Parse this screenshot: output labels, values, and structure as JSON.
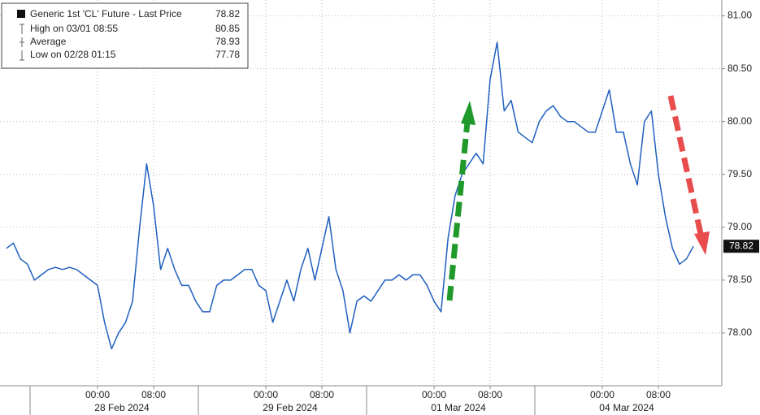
{
  "chart_data": {
    "type": "line",
    "x": [
      "2024-02-27 11:00",
      "2024-02-27 12:00",
      "2024-02-27 13:00",
      "2024-02-27 14:00",
      "2024-02-27 15:00",
      "2024-02-27 16:00",
      "2024-02-27 17:00",
      "2024-02-27 18:00",
      "2024-02-27 19:00",
      "2024-02-27 20:00",
      "2024-02-27 21:00",
      "2024-02-27 22:00",
      "2024-02-27 23:00",
      "2024-02-28 00:00",
      "2024-02-28 01:00",
      "2024-02-28 02:00",
      "2024-02-28 03:00",
      "2024-02-28 04:00",
      "2024-02-28 05:00",
      "2024-02-28 06:00",
      "2024-02-28 07:00",
      "2024-02-28 08:00",
      "2024-02-28 09:00",
      "2024-02-28 10:00",
      "2024-02-28 11:00",
      "2024-02-28 12:00",
      "2024-02-28 13:00",
      "2024-02-28 14:00",
      "2024-02-28 15:00",
      "2024-02-28 16:00",
      "2024-02-28 17:00",
      "2024-02-28 18:00",
      "2024-02-28 19:00",
      "2024-02-28 20:00",
      "2024-02-28 21:00",
      "2024-02-28 22:00",
      "2024-02-28 23:00",
      "2024-02-29 00:00",
      "2024-02-29 01:00",
      "2024-02-29 02:00",
      "2024-02-29 03:00",
      "2024-02-29 04:00",
      "2024-02-29 05:00",
      "2024-02-29 06:00",
      "2024-02-29 07:00",
      "2024-02-29 08:00",
      "2024-02-29 09:00",
      "2024-02-29 10:00",
      "2024-02-29 11:00",
      "2024-02-29 12:00",
      "2024-02-29 13:00",
      "2024-02-29 14:00",
      "2024-02-29 15:00",
      "2024-02-29 16:00",
      "2024-02-29 17:00",
      "2024-02-29 18:00",
      "2024-02-29 19:00",
      "2024-02-29 20:00",
      "2024-02-29 21:00",
      "2024-02-29 22:00",
      "2024-02-29 23:00",
      "2024-03-01 00:00",
      "2024-03-01 01:00",
      "2024-03-01 02:00",
      "2024-03-01 03:00",
      "2024-03-01 04:00",
      "2024-03-01 05:00",
      "2024-03-01 06:00",
      "2024-03-01 07:00",
      "2024-03-01 08:00",
      "2024-03-01 09:00",
      "2024-03-01 10:00",
      "2024-03-01 11:00",
      "2024-03-01 12:00",
      "2024-03-01 13:00",
      "2024-03-01 14:00",
      "2024-03-01 15:00",
      "2024-03-01 16:00",
      "2024-03-01 17:00",
      "2024-03-01 18:00",
      "2024-03-01 19:00",
      "2024-03-01 20:00",
      "2024-03-01 21:00",
      "2024-03-01 22:00",
      "2024-03-01 23:00",
      "2024-03-04 00:00",
      "2024-03-04 01:00",
      "2024-03-04 02:00",
      "2024-03-04 03:00",
      "2024-03-04 04:00",
      "2024-03-04 05:00",
      "2024-03-04 06:00",
      "2024-03-04 07:00",
      "2024-03-04 08:00",
      "2024-03-04 09:00",
      "2024-03-04 10:00",
      "2024-03-04 11:00",
      "2024-03-04 12:00",
      "2024-03-04 13:00"
    ],
    "series": [
      {
        "name": "Generic 1st 'CL' Future - Last Price",
        "color": "#1f5fbf",
        "values": [
          78.8,
          78.85,
          78.7,
          78.65,
          78.5,
          78.55,
          78.6,
          78.62,
          78.6,
          78.62,
          78.6,
          78.55,
          78.5,
          78.45,
          78.1,
          77.85,
          78.0,
          78.1,
          78.3,
          79.0,
          79.6,
          79.2,
          78.6,
          78.8,
          78.6,
          78.45,
          78.45,
          78.3,
          78.2,
          78.2,
          78.45,
          78.5,
          78.5,
          78.55,
          78.6,
          78.6,
          78.45,
          78.4,
          78.1,
          78.3,
          78.5,
          78.3,
          78.6,
          78.8,
          78.5,
          78.8,
          79.1,
          78.6,
          78.4,
          78.0,
          78.3,
          78.35,
          78.3,
          78.4,
          78.5,
          78.5,
          78.55,
          78.5,
          78.55,
          78.55,
          78.45,
          78.3,
          78.2,
          78.9,
          79.3,
          79.5,
          79.6,
          79.7,
          79.6,
          80.4,
          80.75,
          80.1,
          80.2,
          79.9,
          79.85,
          79.8,
          80.0,
          80.1,
          80.15,
          80.05,
          80.0,
          80.0,
          79.95,
          79.9,
          79.9,
          80.1,
          80.3,
          79.9,
          79.9,
          79.6,
          79.4,
          80.0,
          80.1,
          79.5,
          79.1,
          78.8,
          78.65,
          78.7,
          78.82
        ]
      }
    ],
    "stats": [
      {
        "label": "High on 03/01 08:55",
        "value": 80.85
      },
      {
        "label": "Average",
        "value": 78.93
      },
      {
        "label": "Low on 02/28 01:15",
        "value": 77.78
      }
    ],
    "last_price": 78.82,
    "ylim": [
      77.5,
      81.15
    ],
    "yticks": [
      {
        "value": 78,
        "label": "78.00"
      },
      {
        "value": 78.5,
        "label": "78.50"
      },
      {
        "value": 79,
        "label": "79.00"
      },
      {
        "value": 79.5,
        "label": "79.50"
      },
      {
        "value": 80,
        "label": "80.00"
      },
      {
        "value": 80.5,
        "label": "80.50"
      },
      {
        "value": 81,
        "label": "81.00"
      }
    ],
    "xticks": [
      {
        "value": "2024-02-28 00:00",
        "label": "00:00"
      },
      {
        "value": "2024-02-28 08:00",
        "label": "08:00"
      },
      {
        "value": "2024-02-29 00:00",
        "label": "00:00"
      },
      {
        "value": "2024-02-29 08:00",
        "label": "08:00"
      },
      {
        "value": "2024-03-01 00:00",
        "label": "00:00"
      },
      {
        "value": "2024-03-01 08:00",
        "label": "08:00"
      },
      {
        "value": "2024-03-04 00:00",
        "label": "00:00"
      },
      {
        "value": "2024-03-04 08:00",
        "label": "08:00"
      }
    ],
    "date_labels": [
      {
        "value": "2024-02-28",
        "label": "28 Feb 2024"
      },
      {
        "value": "2024-02-29",
        "label": "29 Feb 2024"
      },
      {
        "value": "2024-03-01",
        "label": "01 Mar 2024"
      },
      {
        "value": "2024-03-04",
        "label": "04 Mar 2024"
      }
    ],
    "grid": true
  }
}
